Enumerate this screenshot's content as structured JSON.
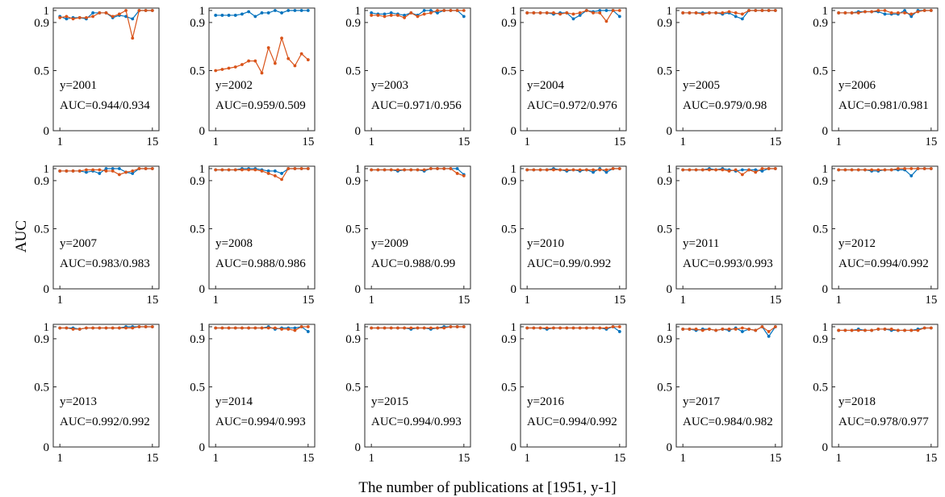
{
  "figure": {
    "ylabel": "AUC",
    "xlabel": "The number of publications at [1951, y-1]"
  },
  "chart_data": {
    "type": "line",
    "layout": "grid 3 rows x 6 columns of small multiples",
    "xlim": [
      0,
      16
    ],
    "ylim": [
      0,
      1.02
    ],
    "x_ticks": [
      "1",
      "15"
    ],
    "y_ticks": [
      "0",
      "0.5",
      "0.9",
      "1"
    ],
    "grid": false,
    "legend": "none",
    "series_colors": {
      "first": "#0072BD",
      "second": "#D95319"
    },
    "x": [
      1,
      2,
      3,
      4,
      5,
      6,
      7,
      8,
      9,
      10,
      11,
      12,
      13,
      14,
      15
    ],
    "panels": [
      {
        "label": "y=2001",
        "auc": "AUC=0.944/0.934",
        "series": [
          {
            "values": [
              0.95,
              0.93,
              0.94,
              0.94,
              0.93,
              0.98,
              0.98,
              0.98,
              0.94,
              0.96,
              0.95,
              0.93,
              1.0,
              1.0,
              1.0
            ]
          },
          {
            "values": [
              0.94,
              0.95,
              0.93,
              0.94,
              0.94,
              0.95,
              0.98,
              0.98,
              0.95,
              0.97,
              1.0,
              0.77,
              1.0,
              1.0,
              1.0
            ]
          }
        ]
      },
      {
        "label": "y=2002",
        "auc": "AUC=0.959/0.509",
        "series": [
          {
            "values": [
              0.96,
              0.96,
              0.96,
              0.96,
              0.97,
              0.99,
              0.95,
              0.98,
              0.98,
              1.0,
              0.98,
              1.0,
              1.0,
              1.0,
              1.0
            ]
          },
          {
            "values": [
              0.5,
              0.51,
              0.52,
              0.53,
              0.55,
              0.58,
              0.58,
              0.48,
              0.69,
              0.56,
              0.77,
              0.6,
              0.54,
              0.64,
              0.59
            ]
          }
        ]
      },
      {
        "label": "y=2003",
        "auc": "AUC=0.971/0.956",
        "series": [
          {
            "values": [
              0.98,
              0.97,
              0.97,
              0.98,
              0.97,
              0.96,
              0.98,
              0.96,
              1.0,
              1.0,
              0.98,
              1.0,
              1.0,
              1.0,
              0.95
            ]
          },
          {
            "values": [
              0.96,
              0.96,
              0.95,
              0.96,
              0.96,
              0.94,
              0.98,
              0.95,
              0.97,
              0.98,
              1.0,
              1.0,
              1.0,
              1.0,
              1.0
            ]
          }
        ]
      },
      {
        "label": "y=2004",
        "auc": "AUC=0.972/0.976",
        "series": [
          {
            "values": [
              0.98,
              0.98,
              0.98,
              0.98,
              0.97,
              0.98,
              0.98,
              0.93,
              0.96,
              1.0,
              0.99,
              1.0,
              1.0,
              1.0,
              0.95
            ]
          },
          {
            "values": [
              0.98,
              0.98,
              0.98,
              0.98,
              0.98,
              0.97,
              0.98,
              0.97,
              0.98,
              1.0,
              0.98,
              0.98,
              0.91,
              1.0,
              1.0
            ]
          }
        ]
      },
      {
        "label": "y=2005",
        "auc": "AUC=0.979/0.98",
        "series": [
          {
            "values": [
              0.98,
              0.98,
              0.98,
              0.98,
              0.98,
              0.98,
              0.97,
              0.98,
              0.95,
              0.93,
              1.0,
              1.0,
              1.0,
              1.0,
              1.0
            ]
          },
          {
            "values": [
              0.98,
              0.98,
              0.98,
              0.97,
              0.98,
              0.98,
              0.98,
              0.99,
              0.98,
              0.97,
              1.0,
              1.0,
              1.0,
              1.0,
              1.0
            ]
          }
        ]
      },
      {
        "label": "y=2006",
        "auc": "AUC=0.981/0.981",
        "series": [
          {
            "values": [
              0.98,
              0.98,
              0.98,
              0.99,
              0.99,
              0.99,
              0.99,
              0.97,
              0.97,
              0.97,
              1.0,
              0.95,
              1.0,
              1.0,
              1.0
            ]
          },
          {
            "values": [
              0.98,
              0.98,
              0.98,
              0.98,
              0.99,
              0.99,
              1.0,
              1.0,
              0.98,
              0.98,
              0.98,
              0.97,
              0.99,
              1.0,
              1.0
            ]
          }
        ]
      },
      {
        "label": "y=2007",
        "auc": "AUC=0.983/0.983",
        "series": [
          {
            "values": [
              0.98,
              0.98,
              0.98,
              0.98,
              0.97,
              0.98,
              0.96,
              1.0,
              1.0,
              1.0,
              0.97,
              0.96,
              1.0,
              1.0,
              1.0
            ]
          },
          {
            "values": [
              0.98,
              0.98,
              0.98,
              0.98,
              0.99,
              0.99,
              0.99,
              0.98,
              0.98,
              0.95,
              0.97,
              0.98,
              1.0,
              1.0,
              1.0
            ]
          }
        ]
      },
      {
        "label": "y=2008",
        "auc": "AUC=0.988/0.986",
        "series": [
          {
            "values": [
              0.99,
              0.99,
              0.99,
              0.99,
              1.0,
              1.0,
              1.0,
              0.99,
              0.98,
              0.98,
              0.96,
              1.0,
              1.0,
              1.0,
              1.0
            ]
          },
          {
            "values": [
              0.99,
              0.99,
              0.99,
              0.99,
              0.99,
              0.99,
              0.99,
              0.98,
              0.96,
              0.94,
              0.91,
              1.0,
              1.0,
              1.0,
              1.0
            ]
          }
        ]
      },
      {
        "label": "y=2009",
        "auc": "AUC=0.988/0.99",
        "series": [
          {
            "values": [
              0.99,
              0.99,
              0.99,
              0.99,
              0.98,
              0.99,
              0.99,
              0.99,
              0.98,
              1.0,
              1.0,
              1.0,
              1.0,
              1.0,
              0.95
            ]
          },
          {
            "values": [
              0.99,
              0.99,
              0.99,
              0.99,
              0.99,
              0.99,
              0.99,
              0.99,
              0.99,
              1.0,
              1.0,
              1.0,
              1.0,
              0.96,
              0.94
            ]
          }
        ]
      },
      {
        "label": "y=2010",
        "auc": "AUC=0.99/0.992",
        "series": [
          {
            "values": [
              0.99,
              0.99,
              0.99,
              0.99,
              1.0,
              0.99,
              0.98,
              0.99,
              0.98,
              0.99,
              0.97,
              1.0,
              0.97,
              1.0,
              1.0
            ]
          },
          {
            "values": [
              0.99,
              0.99,
              0.99,
              0.99,
              0.99,
              0.99,
              0.99,
              0.99,
              0.99,
              0.99,
              0.99,
              0.99,
              0.99,
              1.0,
              1.0
            ]
          }
        ]
      },
      {
        "label": "y=2011",
        "auc": "AUC=0.993/0.993",
        "series": [
          {
            "values": [
              0.99,
              0.99,
              0.99,
              0.99,
              1.0,
              0.99,
              1.0,
              0.99,
              0.98,
              0.99,
              0.99,
              0.99,
              0.98,
              1.0,
              1.0
            ]
          },
          {
            "values": [
              0.99,
              0.99,
              0.99,
              0.99,
              0.99,
              0.99,
              0.99,
              0.98,
              0.99,
              0.95,
              0.99,
              0.97,
              1.0,
              1.0,
              1.0
            ]
          }
        ]
      },
      {
        "label": "y=2012",
        "auc": "AUC=0.994/0.992",
        "series": [
          {
            "values": [
              0.99,
              0.99,
              0.99,
              0.99,
              0.99,
              0.98,
              0.98,
              0.99,
              0.99,
              0.99,
              0.99,
              0.94,
              1.0,
              1.0,
              1.0
            ]
          },
          {
            "values": [
              0.99,
              0.99,
              0.99,
              0.99,
              0.99,
              0.99,
              0.99,
              0.99,
              0.99,
              1.0,
              1.0,
              1.0,
              1.0,
              1.0,
              1.0
            ]
          }
        ]
      },
      {
        "label": "y=2013",
        "auc": "AUC=0.992/0.992",
        "series": [
          {
            "values": [
              0.99,
              0.99,
              0.99,
              0.98,
              0.99,
              0.99,
              0.99,
              0.99,
              0.99,
              0.99,
              1.0,
              1.0,
              1.0,
              1.0,
              1.0
            ]
          },
          {
            "values": [
              0.99,
              0.99,
              0.98,
              0.98,
              0.99,
              0.99,
              0.99,
              0.99,
              0.99,
              0.99,
              0.99,
              0.99,
              1.0,
              1.0,
              1.0
            ]
          }
        ]
      },
      {
        "label": "y=2014",
        "auc": "AUC=0.994/0.993",
        "series": [
          {
            "values": [
              0.99,
              0.99,
              0.99,
              0.99,
              0.99,
              0.99,
              0.99,
              0.99,
              1.0,
              0.98,
              0.99,
              0.99,
              0.99,
              1.0,
              0.96
            ]
          },
          {
            "values": [
              0.99,
              0.99,
              0.99,
              0.99,
              0.99,
              0.99,
              0.99,
              0.99,
              0.99,
              0.99,
              0.98,
              0.98,
              0.97,
              1.0,
              1.0
            ]
          }
        ]
      },
      {
        "label": "y=2015",
        "auc": "AUC=0.994/0.993",
        "series": [
          {
            "values": [
              0.99,
              0.99,
              0.99,
              0.99,
              0.99,
              0.99,
              0.98,
              0.99,
              0.99,
              0.98,
              0.99,
              1.0,
              1.0,
              1.0,
              1.0
            ]
          },
          {
            "values": [
              0.99,
              0.99,
              0.99,
              0.99,
              0.99,
              0.99,
              0.99,
              0.99,
              0.99,
              0.99,
              0.99,
              0.99,
              1.0,
              1.0,
              1.0
            ]
          }
        ]
      },
      {
        "label": "y=2016",
        "auc": "AUC=0.994/0.992",
        "series": [
          {
            "values": [
              0.99,
              0.99,
              0.99,
              0.98,
              0.99,
              0.99,
              0.99,
              0.99,
              0.99,
              0.99,
              0.99,
              0.99,
              0.98,
              1.0,
              0.96
            ]
          },
          {
            "values": [
              0.99,
              0.99,
              0.99,
              0.99,
              0.99,
              0.99,
              0.99,
              0.99,
              0.99,
              0.99,
              0.99,
              0.99,
              0.99,
              1.0,
              1.0
            ]
          }
        ]
      },
      {
        "label": "y=2017",
        "auc": "AUC=0.984/0.982",
        "series": [
          {
            "values": [
              0.98,
              0.98,
              0.97,
              0.98,
              0.98,
              0.97,
              0.98,
              0.97,
              0.99,
              0.96,
              0.98,
              0.97,
              1.0,
              0.92,
              1.0
            ]
          },
          {
            "values": [
              0.98,
              0.98,
              0.98,
              0.97,
              0.98,
              0.97,
              0.98,
              0.98,
              0.98,
              0.99,
              0.98,
              0.97,
              1.0,
              0.96,
              1.0
            ]
          }
        ]
      },
      {
        "label": "y=2018",
        "auc": "AUC=0.978/0.977",
        "series": [
          {
            "values": [
              0.97,
              0.97,
              0.97,
              0.98,
              0.97,
              0.97,
              0.98,
              0.98,
              0.97,
              0.97,
              0.97,
              0.97,
              0.98,
              0.99,
              0.99
            ]
          },
          {
            "values": [
              0.97,
              0.97,
              0.97,
              0.97,
              0.97,
              0.97,
              0.98,
              0.98,
              0.98,
              0.97,
              0.97,
              0.97,
              0.97,
              0.99,
              0.99
            ]
          }
        ]
      }
    ]
  }
}
